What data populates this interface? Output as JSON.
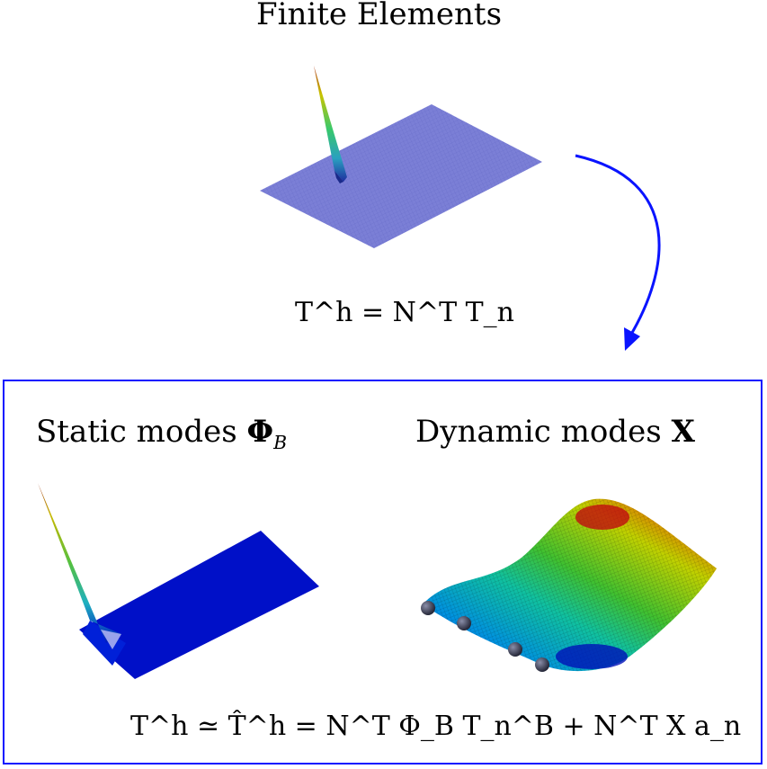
{
  "top": {
    "title": "Finite Elements",
    "equation": "T^h = N^T T_n"
  },
  "box": {
    "static_title": "Static modes",
    "static_symbol": "Φ",
    "static_sub": "B",
    "dynamic_title": "Dynamic modes",
    "dynamic_symbol": "X",
    "equation": "T^h ≃ T̂^h = N^T Φ_B T_n^B + N^T X a_n"
  },
  "colors": {
    "arrow": "#0a14ff",
    "box_border": "#0a14ff",
    "fe_plate": "#7b7fd6",
    "static_plate": "#0010c8"
  }
}
